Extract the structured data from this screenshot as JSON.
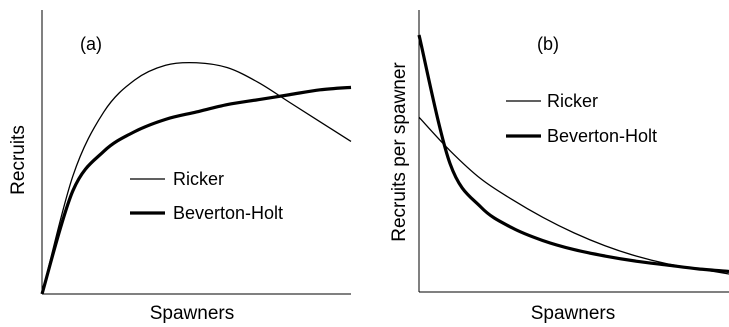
{
  "chart_data": [
    {
      "type": "line",
      "panel_label": "(a)",
      "xlabel": "Spawners",
      "ylabel": "Recruits",
      "xlim": [
        0,
        1
      ],
      "ylim": [
        0,
        1
      ],
      "legend_position": "center-right",
      "series": [
        {
          "name": "Ricker",
          "x": [
            0,
            0.1,
            0.2,
            0.3,
            0.4,
            0.5,
            0.6,
            0.7,
            0.8,
            0.9,
            1.0
          ],
          "y": [
            0,
            0.48,
            0.74,
            0.87,
            0.93,
            0.94,
            0.92,
            0.86,
            0.78,
            0.7,
            0.62
          ]
        },
        {
          "name": "Beverton-Holt",
          "x": [
            0,
            0.1,
            0.2,
            0.3,
            0.4,
            0.5,
            0.6,
            0.7,
            0.8,
            0.9,
            1.0
          ],
          "y": [
            0,
            0.42,
            0.58,
            0.66,
            0.71,
            0.74,
            0.77,
            0.79,
            0.81,
            0.83,
            0.84
          ]
        }
      ]
    },
    {
      "type": "line",
      "panel_label": "(b)",
      "xlabel": "Spawners",
      "ylabel": "Recruits per spawner",
      "xlim": [
        0,
        1
      ],
      "ylim": [
        0,
        1
      ],
      "legend_position": "top-center",
      "series": [
        {
          "name": "Ricker",
          "x": [
            0,
            0.1,
            0.2,
            0.3,
            0.4,
            0.5,
            0.6,
            0.7,
            0.8,
            0.9,
            1.0
          ],
          "y": [
            0.68,
            0.55,
            0.44,
            0.36,
            0.29,
            0.23,
            0.18,
            0.14,
            0.11,
            0.09,
            0.07
          ]
        },
        {
          "name": "Beverton-Holt",
          "x": [
            0,
            0.1,
            0.2,
            0.3,
            0.4,
            0.5,
            0.6,
            0.7,
            0.8,
            0.9,
            1.0
          ],
          "y": [
            1.0,
            0.5,
            0.33,
            0.25,
            0.2,
            0.165,
            0.14,
            0.12,
            0.105,
            0.09,
            0.08
          ]
        }
      ]
    }
  ]
}
